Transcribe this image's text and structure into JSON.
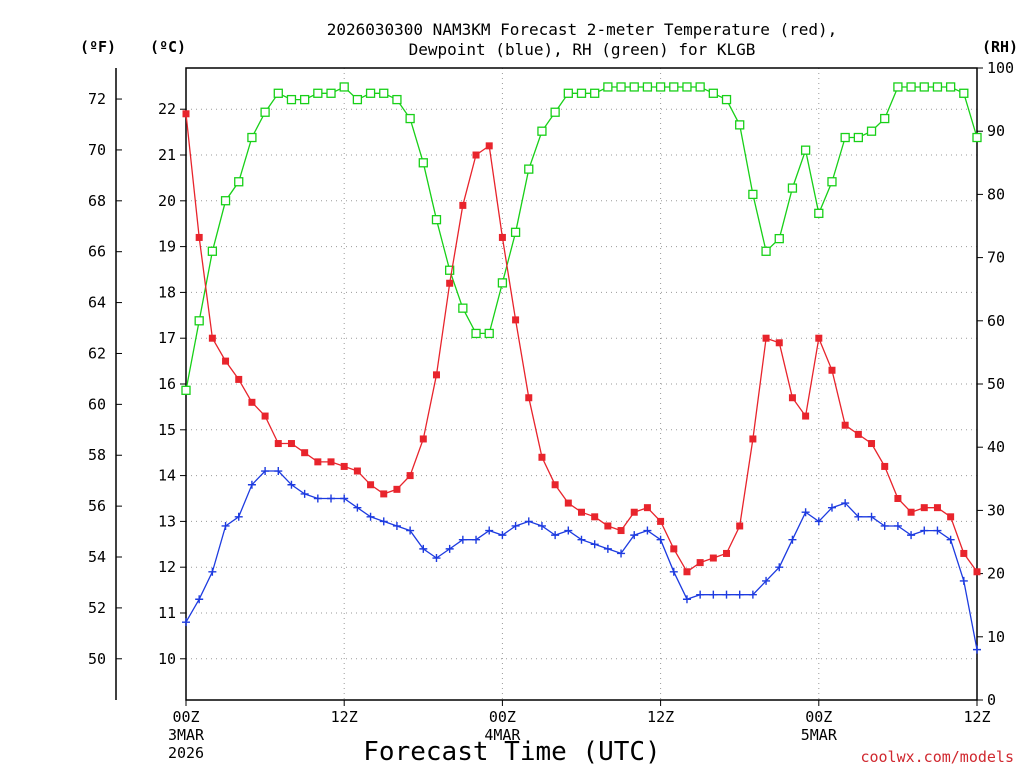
{
  "chart_data": {
    "type": "line",
    "title_line1": "2026030300 NAM3KM Forecast 2-meter Temperature (red),",
    "title_line2": "Dewpoint (blue), RH (green) for KLGB",
    "xlabel": "Forecast Time (UTC)",
    "credit": "coolwx.com/models",
    "units": {
      "f": "(ºF)",
      "c": "(ºC)",
      "rh": "(RH)"
    },
    "x_range_hours": [
      0,
      60
    ],
    "x_ticks": [
      {
        "hour": 0,
        "label": "00Z",
        "date": "3MAR",
        "year": "2026"
      },
      {
        "hour": 12,
        "label": "12Z",
        "date": "",
        "year": ""
      },
      {
        "hour": 24,
        "label": "00Z",
        "date": "4MAR",
        "year": ""
      },
      {
        "hour": 36,
        "label": "12Z",
        "date": "",
        "year": ""
      },
      {
        "hour": 48,
        "label": "00Z",
        "date": "5MAR",
        "year": ""
      },
      {
        "hour": 60,
        "label": "12Z",
        "date": "",
        "year": ""
      }
    ],
    "c_range": [
      9.1,
      22.9
    ],
    "c_ticks": [
      "10",
      "11",
      "12",
      "13",
      "14",
      "15",
      "16",
      "17",
      "18",
      "19",
      "20",
      "21",
      "22"
    ],
    "f_ticks": [
      "50",
      "52",
      "54",
      "56",
      "58",
      "60",
      "62",
      "64",
      "66",
      "68",
      "70",
      "72"
    ],
    "rh_range": [
      0,
      100
    ],
    "rh_ticks": [
      "0",
      "10",
      "20",
      "30",
      "40",
      "50",
      "60",
      "70",
      "80",
      "90",
      "100"
    ],
    "colors": {
      "temperature": "#e8242c",
      "dewpoint": "#1d3be0",
      "rh": "#18d018",
      "grid": "#9a9a9a"
    },
    "series": [
      {
        "name": "Temperature",
        "unit": "C",
        "values": [
          21.9,
          19.2,
          17.0,
          16.5,
          16.1,
          15.6,
          15.3,
          14.7,
          14.7,
          14.5,
          14.3,
          14.3,
          14.2,
          14.1,
          13.8,
          13.6,
          13.7,
          14.0,
          14.8,
          16.2,
          18.2,
          19.9,
          21.0,
          21.2,
          19.2,
          17.4,
          15.7,
          14.4,
          13.8,
          13.4,
          13.2,
          13.1,
          12.9,
          12.8,
          13.2,
          13.3,
          13.0,
          12.4,
          11.9,
          12.1,
          12.2,
          12.3,
          12.9,
          14.8,
          17.0,
          16.9,
          15.7,
          15.3,
          17.0,
          16.3,
          15.1,
          14.9,
          14.7,
          14.2,
          13.5,
          13.2,
          13.3,
          13.3,
          13.1,
          12.3,
          11.9
        ]
      },
      {
        "name": "Dewpoint",
        "unit": "C",
        "values": [
          10.8,
          11.3,
          11.9,
          12.9,
          13.1,
          13.8,
          14.1,
          14.1,
          13.8,
          13.6,
          13.5,
          13.5,
          13.5,
          13.3,
          13.1,
          13.0,
          12.9,
          12.8,
          12.4,
          12.2,
          12.4,
          12.6,
          12.6,
          12.8,
          12.7,
          12.9,
          13.0,
          12.9,
          12.7,
          12.8,
          12.6,
          12.5,
          12.4,
          12.3,
          12.7,
          12.8,
          12.6,
          11.9,
          11.3,
          11.4,
          11.4,
          11.4,
          11.4,
          11.4,
          11.7,
          12.0,
          12.6,
          13.2,
          13.0,
          13.3,
          13.4,
          13.1,
          13.1,
          12.9,
          12.9,
          12.7,
          12.8,
          12.8,
          12.6,
          11.7,
          10.2
        ]
      },
      {
        "name": "RH",
        "unit": "%",
        "values": [
          49,
          60,
          71,
          79,
          82,
          89,
          93,
          96,
          95,
          95,
          96,
          96,
          97,
          95,
          96,
          96,
          95,
          92,
          85,
          76,
          68,
          62,
          58,
          58,
          66,
          74,
          84,
          90,
          93,
          96,
          96,
          96,
          97,
          97,
          97,
          97,
          97,
          97,
          97,
          97,
          96,
          95,
          91,
          80,
          71,
          73,
          81,
          87,
          77,
          82,
          89,
          89,
          90,
          92,
          97,
          97,
          97,
          97,
          97,
          96,
          89
        ]
      }
    ]
  }
}
